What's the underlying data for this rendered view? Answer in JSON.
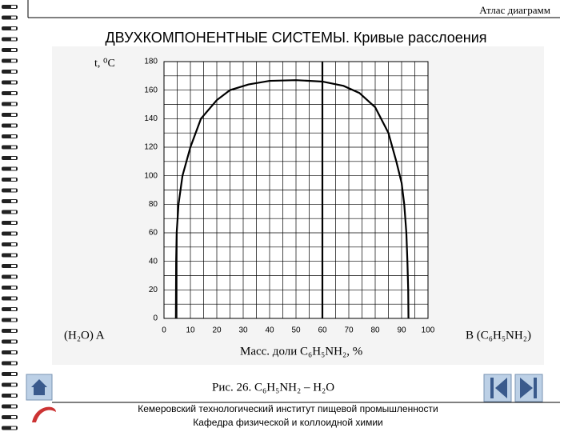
{
  "header": {
    "atlas": "Атлас диаграмм",
    "title": "ДВУХКОМПОНЕНТНЫЕ СИСТЕМЫ. Кривые расслоения"
  },
  "chart_data": {
    "type": "line",
    "ylabel": "t, ⁰С",
    "xlabel": "Масс. доли C₆H₅NH₂, %",
    "left_label": "(H₂O) A",
    "right_label": "B (C₆H₅NH₂)",
    "x": [
      4.5,
      4.6,
      4.8,
      5.5,
      7,
      10,
      14,
      20,
      25,
      32,
      40,
      50,
      60,
      68,
      74,
      80,
      85,
      88,
      90,
      91,
      91.8,
      92.2,
      92.5,
      92.6
    ],
    "values": [
      0,
      40,
      60,
      80,
      100,
      120,
      140,
      153,
      160,
      164,
      166.5,
      167,
      166,
      163,
      158,
      148,
      130,
      110,
      95,
      80,
      60,
      40,
      20,
      0
    ],
    "color": "#000000",
    "xlim": [
      0,
      100
    ],
    "xticks": [
      0,
      10,
      20,
      30,
      40,
      50,
      60,
      70,
      80,
      90,
      100
    ],
    "xminor": [
      5,
      15,
      25,
      35,
      45,
      55,
      65,
      75,
      85,
      95
    ],
    "ylim": [
      0,
      180
    ],
    "yticks": [
      0,
      20,
      40,
      60,
      80,
      100,
      120,
      140,
      160,
      180
    ],
    "yminor": [
      10,
      30,
      50,
      70,
      90,
      110,
      130,
      150,
      170
    ],
    "bold_x": 60,
    "grid": true
  },
  "caption": "Рис. 26. C₆H₅NH₂ – H₂O",
  "footer": {
    "line1": "Кемеровский технологический институт пищевой промышленности",
    "line2": "Кафедра физической и коллоидной химии"
  }
}
